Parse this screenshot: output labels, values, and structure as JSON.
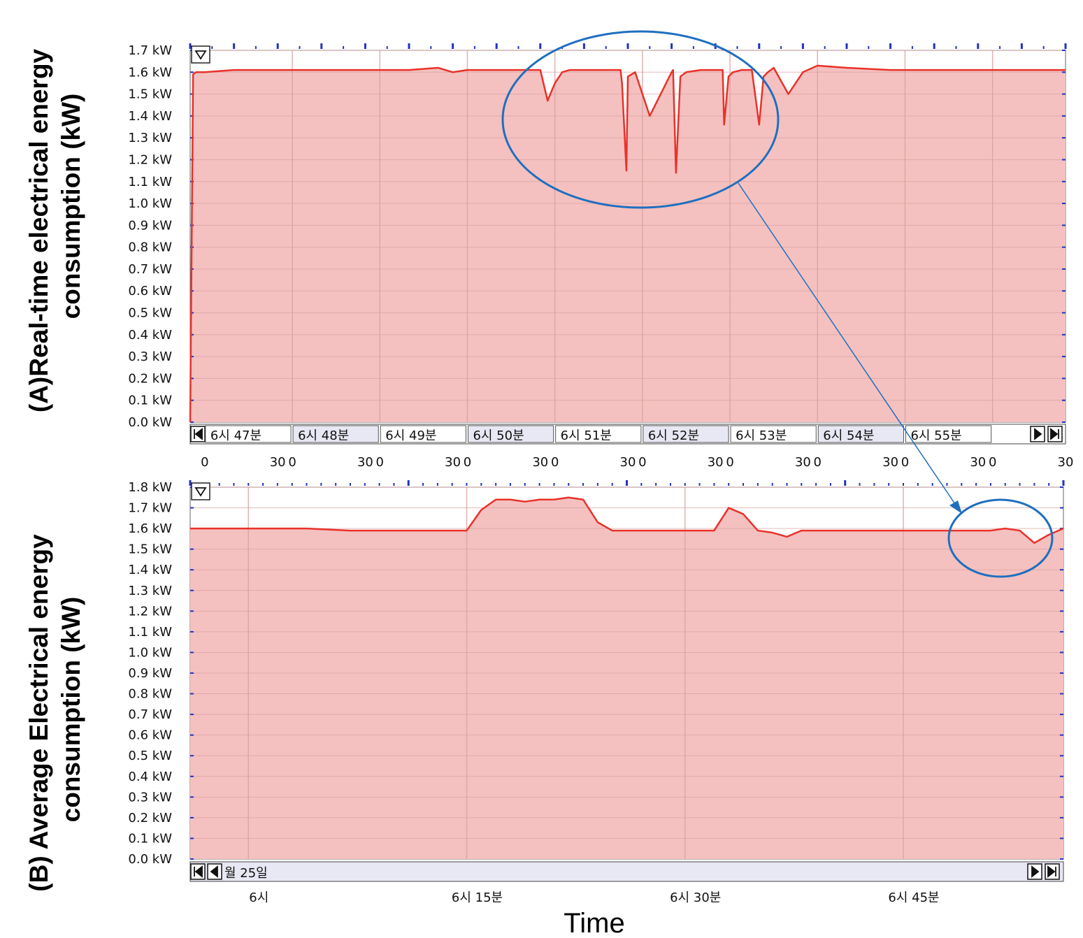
{
  "figure": {
    "xlabel": "Time",
    "colors": {
      "line": "#e8322a",
      "fill": "#f4c1c0",
      "grid": "#d9a0a0",
      "annotation": "#1f6fbf",
      "nav_bg": "#e8e8f4"
    }
  },
  "chart_data": [
    {
      "id": "A",
      "type": "area",
      "ylabel_lines": [
        "(A)Real-time electrical energy",
        "consumption (kW)"
      ],
      "y_ticks": [
        "0.0 kW",
        "0.1 kW",
        "0.2 kW",
        "0.3 kW",
        "0.4 kW",
        "0.5 kW",
        "0.6 kW",
        "0.7 kW",
        "0.8 kW",
        "0.9 kW",
        "1.0 kW",
        "1.1 kW",
        "1.2 kW",
        "1.3 kW",
        "1.4 kW",
        "1.5 kW",
        "1.6 kW",
        "1.7 kW"
      ],
      "ylim": [
        0,
        1.7
      ],
      "xlim": [
        0,
        600
      ],
      "x_unit": "seconds from 6시 46분 50초",
      "nav_labels": [
        "6시 47분",
        "6시 48분",
        "6시 49분",
        "6시 50분",
        "6시 51분",
        "6시 52분",
        "6시 53분",
        "6시 54분",
        "6시 55분"
      ],
      "sub_ticks": [
        "0",
        "30",
        "0",
        "30",
        "0",
        "30",
        "0",
        "30",
        "0",
        "30",
        "0",
        "30",
        "0",
        "30",
        "0",
        "30",
        "0",
        "30",
        "0",
        "30"
      ],
      "x": [
        0,
        2,
        4,
        10,
        30,
        60,
        90,
        120,
        150,
        170,
        180,
        190,
        200,
        210,
        220,
        235,
        240,
        245,
        250,
        255,
        260,
        270,
        280,
        290,
        295,
        296,
        299,
        300,
        305,
        315,
        330,
        331,
        333,
        336,
        340,
        350,
        360,
        365,
        366,
        369,
        372,
        378,
        385,
        390,
        393,
        396,
        400,
        410,
        420,
        430,
        450,
        480,
        510,
        540,
        560,
        580,
        600
      ],
      "y": [
        0.0,
        1.59,
        1.6,
        1.6,
        1.61,
        1.61,
        1.61,
        1.61,
        1.61,
        1.62,
        1.6,
        1.61,
        1.61,
        1.61,
        1.61,
        1.61,
        1.61,
        1.47,
        1.55,
        1.6,
        1.61,
        1.61,
        1.61,
        1.61,
        1.61,
        1.55,
        1.15,
        1.58,
        1.6,
        1.4,
        1.6,
        1.61,
        1.14,
        1.58,
        1.6,
        1.61,
        1.61,
        1.61,
        1.36,
        1.58,
        1.6,
        1.61,
        1.61,
        1.36,
        1.58,
        1.6,
        1.62,
        1.5,
        1.6,
        1.63,
        1.62,
        1.61,
        1.61,
        1.61,
        1.61,
        1.61,
        1.61
      ],
      "annotation": "highlight ellipse around dips, arrow to B"
    },
    {
      "id": "B",
      "type": "area",
      "ylabel_lines": [
        "(B) Average Electrical energy",
        "consumption (kW)"
      ],
      "y_ticks": [
        "0.0 kW",
        "0.1 kW",
        "0.2 kW",
        "0.3 kW",
        "0.4 kW",
        "0.5 kW",
        "0.6 kW",
        "0.7 kW",
        "0.8 kW",
        "0.9 kW",
        "1.0 kW",
        "1.1 kW",
        "1.2 kW",
        "1.3 kW",
        "1.4 kW",
        "1.5 kW",
        "1.6 kW",
        "1.7 kW",
        "1.8 kW"
      ],
      "ylim": [
        0,
        1.8
      ],
      "xlim": [
        0,
        60
      ],
      "x_unit": "minutes from 5시 56분",
      "nav_date": "월 25일",
      "x_tick_labels": [
        "6시",
        "6시 15분",
        "6시 30분",
        "6시 45분"
      ],
      "x": [
        0,
        8,
        11,
        13,
        14,
        15,
        16,
        17,
        18,
        19,
        20,
        21,
        22,
        23,
        24,
        25,
        26,
        27,
        28,
        29,
        30,
        31,
        32,
        33,
        34,
        35,
        36,
        37,
        38,
        39,
        40,
        41,
        42,
        43,
        44,
        45,
        46,
        47,
        48,
        49,
        50,
        51,
        52,
        53,
        54,
        55,
        56,
        57,
        58,
        59,
        60
      ],
      "y": [
        1.6,
        1.6,
        1.59,
        1.59,
        1.59,
        1.59,
        1.59,
        1.59,
        1.59,
        1.59,
        1.69,
        1.74,
        1.74,
        1.73,
        1.74,
        1.74,
        1.75,
        1.74,
        1.63,
        1.59,
        1.59,
        1.59,
        1.59,
        1.59,
        1.59,
        1.59,
        1.59,
        1.7,
        1.67,
        1.59,
        1.58,
        1.56,
        1.59,
        1.59,
        1.59,
        1.59,
        1.59,
        1.59,
        1.59,
        1.59,
        1.59,
        1.59,
        1.59,
        1.59,
        1.59,
        1.59,
        1.6,
        1.59,
        1.53,
        1.57,
        1.6
      ],
      "annotation": "highlight ellipse around dip"
    }
  ]
}
